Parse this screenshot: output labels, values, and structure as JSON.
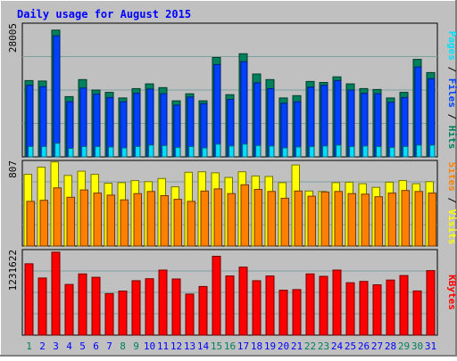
{
  "chart_data": {
    "type": "bar",
    "title": "Daily usage for August 2015",
    "categories": [
      "1",
      "2",
      "3",
      "4",
      "5",
      "6",
      "7",
      "8",
      "9",
      "10",
      "11",
      "12",
      "13",
      "14",
      "15",
      "16",
      "17",
      "18",
      "19",
      "20",
      "21",
      "22",
      "23",
      "24",
      "25",
      "26",
      "27",
      "28",
      "29",
      "30",
      "31"
    ],
    "weekend_days": [
      1,
      8,
      9,
      15,
      16,
      22,
      23,
      29,
      30
    ],
    "panels": [
      {
        "id": "top",
        "ymax_label": "28005",
        "ymax": 28005,
        "legend": [
          "Pages",
          "Files",
          "Hits"
        ],
        "series": [
          {
            "name": "Hits",
            "values": [
              16200,
              16100,
              26900,
              12800,
              16400,
              14200,
              13700,
              12500,
              14500,
              15500,
              14700,
              11900,
              13400,
              11900,
              21100,
              13200,
              21900,
              17600,
              16400,
              12500,
              13000,
              16000,
              15800,
              17000,
              15500,
              14500,
              14300,
              12500,
              13700,
              20700,
              17900
            ]
          },
          {
            "name": "Files",
            "values": [
              15200,
              14900,
              25700,
              11700,
              14600,
              13300,
              12600,
              11700,
              13500,
              14400,
              13400,
              11000,
              12700,
              11300,
              19600,
              12200,
              20200,
              15700,
              14500,
              11400,
              11700,
              14800,
              15200,
              16200,
              14200,
              13500,
              13400,
              11600,
              12600,
              19100,
              16600
            ]
          },
          {
            "name": "Pages",
            "values": [
              2200,
              2200,
              2900,
              1800,
              2200,
              2200,
              2100,
              1900,
              2200,
              2500,
              2400,
              2000,
              2200,
              1900,
              2700,
              2300,
              2700,
              2400,
              2300,
              1900,
              2100,
              2200,
              2300,
              2500,
              2200,
              2300,
              2200,
              2000,
              2200,
              2500,
              2500
            ]
          }
        ]
      },
      {
        "id": "middle",
        "ymax_label": "807",
        "ymax": 807,
        "legend": [
          "Sites",
          "Visits"
        ],
        "series": [
          {
            "name": "Visits",
            "values": [
              690,
              760,
              810,
              680,
              720,
              690,
              605,
              610,
              630,
              620,
              650,
              570,
              710,
              715,
              705,
              660,
              715,
              675,
              670,
              610,
              780,
              530,
              525,
              610,
              615,
              600,
              565,
              615,
              630,
              600,
              620
            ]
          },
          {
            "name": "Sites",
            "values": [
              430,
              440,
              560,
              470,
              540,
              510,
              490,
              445,
              505,
              525,
              485,
              450,
              430,
              530,
              550,
              505,
              590,
              545,
              525,
              460,
              530,
              480,
              520,
              525,
              505,
              500,
              475,
              510,
              535,
              525,
              510
            ]
          }
        ]
      },
      {
        "id": "bottom",
        "ymax_label": "1231622",
        "ymax": 1231622,
        "legend": [
          "KBytes"
        ],
        "series": [
          {
            "name": "KBytes",
            "values": [
              1050000,
              840000,
              1220000,
              745000,
              900000,
              850000,
              610000,
              648000,
              800000,
              830000,
              957000,
              825000,
              604000,
              715000,
              1160000,
              870000,
              1000000,
              800000,
              870000,
              660000,
              670000,
              900000,
              865000,
              957000,
              770000,
              790000,
              740000,
              810000,
              877000,
              650000,
              948000
            ]
          }
        ]
      }
    ],
    "colors": {
      "Hits": "#00805c",
      "Files": "#0040ff",
      "Pages": "#00e0ff",
      "Visits": "#ffff00",
      "Sites": "#ff8000",
      "KBytes": "#ff0000",
      "title": "#0000ff",
      "weekend_label": "#00805c",
      "weekday_label": "#0000ff",
      "plot_bg": "#c0c0c0",
      "grid": "#80a0a0"
    }
  }
}
